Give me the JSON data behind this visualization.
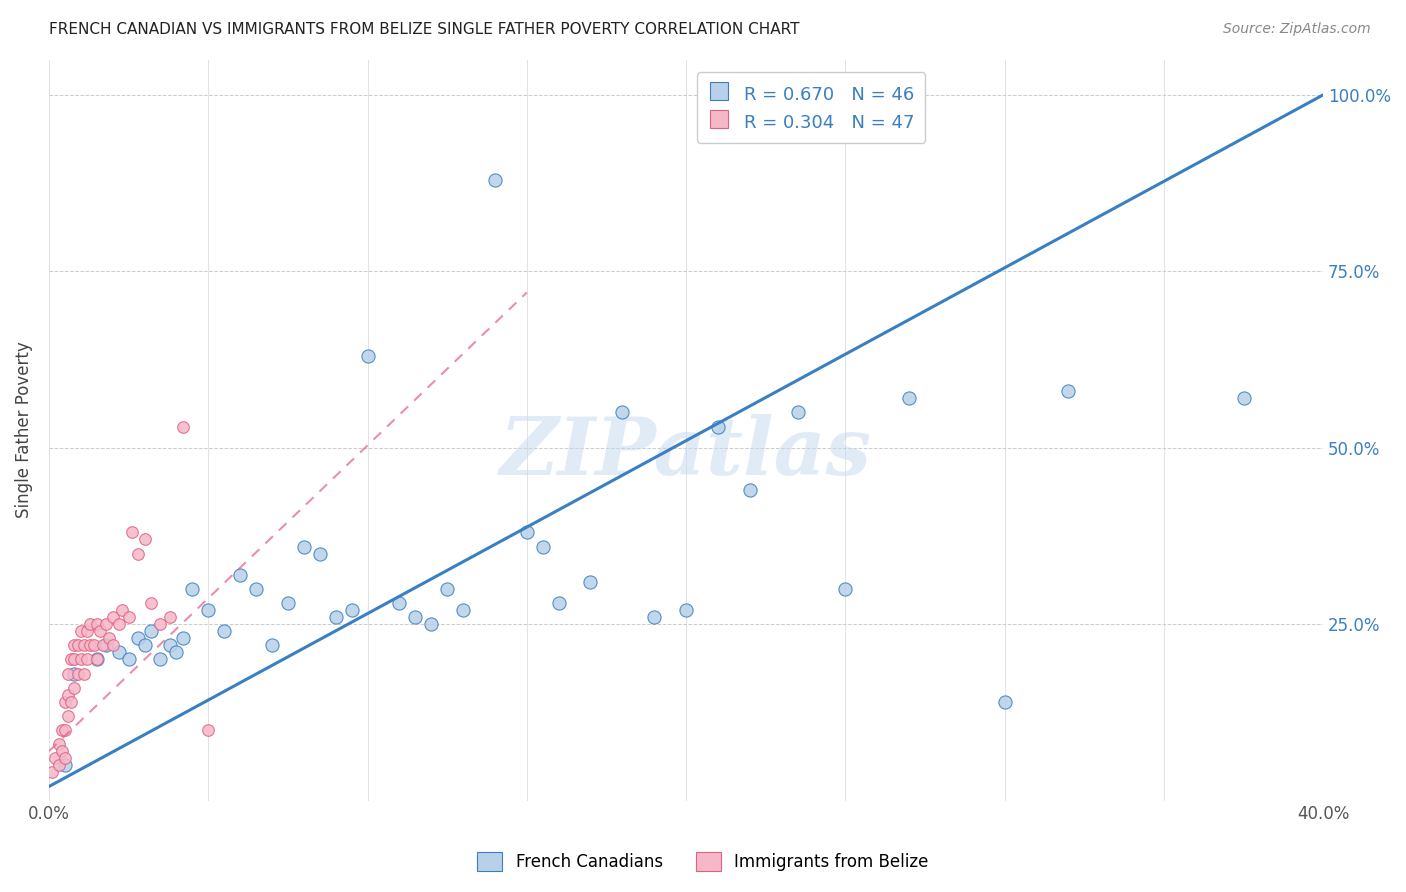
{
  "title": "FRENCH CANADIAN VS IMMIGRANTS FROM BELIZE SINGLE FATHER POVERTY CORRELATION CHART",
  "source": "Source: ZipAtlas.com",
  "ylabel": "Single Father Poverty",
  "blue_R": 0.67,
  "blue_N": 46,
  "pink_R": 0.304,
  "pink_N": 47,
  "legend_label_blue": "French Canadians",
  "legend_label_pink": "Immigrants from Belize",
  "blue_color": "#b8d0e8",
  "pink_color": "#f5b8c8",
  "blue_line_color": "#3a7fc1",
  "pink_line_color": "#e06080",
  "watermark": "ZIPatlas",
  "blue_scatter_x": [
    0.005,
    0.008,
    0.015,
    0.018,
    0.022,
    0.025,
    0.028,
    0.03,
    0.032,
    0.035,
    0.038,
    0.04,
    0.042,
    0.045,
    0.05,
    0.055,
    0.06,
    0.065,
    0.07,
    0.075,
    0.08,
    0.085,
    0.09,
    0.095,
    0.1,
    0.11,
    0.115,
    0.12,
    0.125,
    0.13,
    0.14,
    0.15,
    0.155,
    0.16,
    0.17,
    0.18,
    0.19,
    0.2,
    0.21,
    0.22,
    0.235,
    0.25,
    0.27,
    0.3,
    0.32,
    0.375
  ],
  "blue_scatter_y": [
    0.05,
    0.18,
    0.2,
    0.22,
    0.21,
    0.2,
    0.23,
    0.22,
    0.24,
    0.2,
    0.22,
    0.21,
    0.23,
    0.3,
    0.27,
    0.24,
    0.32,
    0.3,
    0.22,
    0.28,
    0.36,
    0.35,
    0.26,
    0.27,
    0.63,
    0.28,
    0.26,
    0.25,
    0.3,
    0.27,
    0.88,
    0.38,
    0.36,
    0.28,
    0.31,
    0.55,
    0.26,
    0.27,
    0.53,
    0.44,
    0.55,
    0.3,
    0.57,
    0.14,
    0.58,
    0.57
  ],
  "pink_scatter_x": [
    0.001,
    0.002,
    0.003,
    0.003,
    0.004,
    0.004,
    0.005,
    0.005,
    0.005,
    0.006,
    0.006,
    0.006,
    0.007,
    0.007,
    0.008,
    0.008,
    0.008,
    0.009,
    0.009,
    0.01,
    0.01,
    0.011,
    0.011,
    0.012,
    0.012,
    0.013,
    0.013,
    0.014,
    0.015,
    0.015,
    0.016,
    0.017,
    0.018,
    0.019,
    0.02,
    0.02,
    0.022,
    0.023,
    0.025,
    0.026,
    0.028,
    0.03,
    0.032,
    0.035,
    0.038,
    0.042,
    0.05
  ],
  "pink_scatter_y": [
    0.04,
    0.06,
    0.05,
    0.08,
    0.07,
    0.1,
    0.06,
    0.1,
    0.14,
    0.12,
    0.15,
    0.18,
    0.14,
    0.2,
    0.16,
    0.2,
    0.22,
    0.18,
    0.22,
    0.2,
    0.24,
    0.18,
    0.22,
    0.2,
    0.24,
    0.22,
    0.25,
    0.22,
    0.2,
    0.25,
    0.24,
    0.22,
    0.25,
    0.23,
    0.26,
    0.22,
    0.25,
    0.27,
    0.26,
    0.38,
    0.35,
    0.37,
    0.28,
    0.25,
    0.26,
    0.53,
    0.1
  ],
  "blue_line_x0": 0.0,
  "blue_line_y0": 0.02,
  "blue_line_x1": 0.4,
  "blue_line_y1": 1.0,
  "pink_line_x0": 0.0,
  "pink_line_y0": 0.07,
  "pink_line_x1": 0.15,
  "pink_line_y1": 0.72,
  "xlim": [
    0.0,
    0.4
  ],
  "ylim": [
    0.0,
    1.05
  ],
  "figsize": [
    14.06,
    8.92
  ],
  "dpi": 100
}
